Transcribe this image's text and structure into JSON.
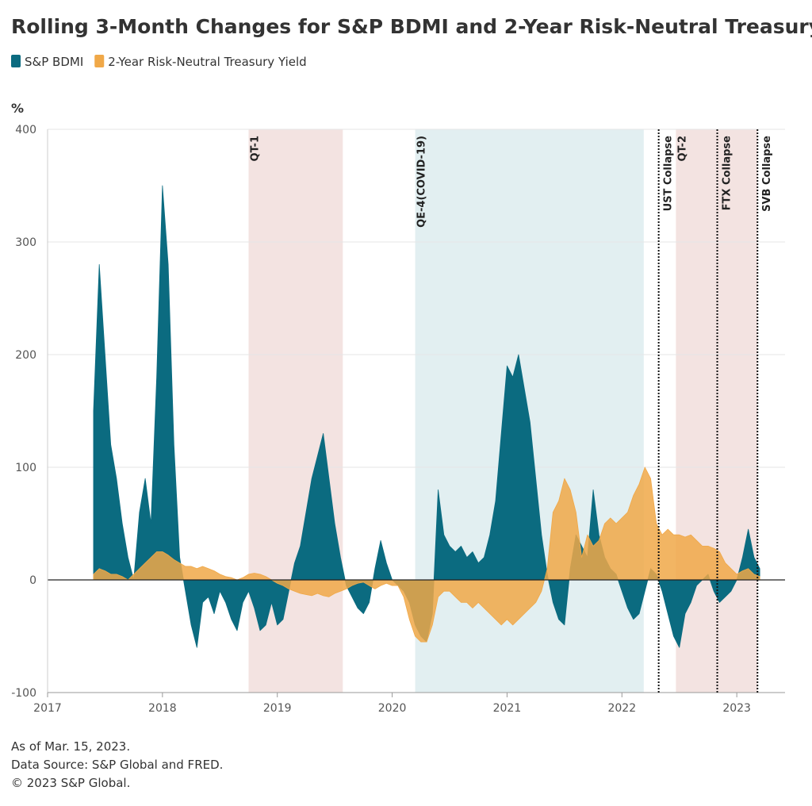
{
  "chart_data": {
    "type": "area",
    "title": "Rolling 3-Month Changes for S&P BDMI and 2-Year Risk-Neutral Treasury Yield",
    "y_label": "%",
    "notes": [
      "As of Mar. 15, 2023.",
      "Data Source: S&P Global and FRED.",
      "© 2023 S&P Global."
    ],
    "xlim": [
      2017,
      2023.42
    ],
    "xticks": [
      2017,
      2018,
      2019,
      2020,
      2021,
      2022,
      2023
    ],
    "ylim": [
      -100,
      400
    ],
    "yticks": [
      -100,
      0,
      100,
      200,
      300,
      400
    ],
    "grid": true,
    "legend": "top-left",
    "bands": [
      {
        "label": "QT-1",
        "start": 2018.75,
        "end": 2019.57,
        "color": "#f3e3e1"
      },
      {
        "label": "QE-4(COVID-19)",
        "start": 2020.2,
        "end": 2022.19,
        "color": "#e2eff1"
      },
      {
        "label": "QT-2",
        "start": 2022.47,
        "end": 2023.18,
        "color": "#f3e3e1"
      }
    ],
    "events": [
      {
        "label": "UST Collapse",
        "x": 2022.32
      },
      {
        "label": "FTX Collapse",
        "x": 2022.83
      },
      {
        "label": "SVB Collapse",
        "x": 2023.18
      }
    ],
    "x": [
      2017.4,
      2017.45,
      2017.5,
      2017.55,
      2017.6,
      2017.65,
      2017.7,
      2017.75,
      2017.8,
      2017.85,
      2017.9,
      2017.95,
      2018,
      2018.05,
      2018.1,
      2018.15,
      2018.2,
      2018.25,
      2018.3,
      2018.35,
      2018.4,
      2018.45,
      2018.5,
      2018.55,
      2018.6,
      2018.65,
      2018.7,
      2018.75,
      2018.8,
      2018.85,
      2018.9,
      2018.95,
      2019,
      2019.05,
      2019.1,
      2019.15,
      2019.2,
      2019.25,
      2019.3,
      2019.35,
      2019.4,
      2019.45,
      2019.5,
      2019.55,
      2019.6,
      2019.65,
      2019.7,
      2019.75,
      2019.8,
      2019.85,
      2019.9,
      2019.95,
      2020,
      2020.05,
      2020.1,
      2020.15,
      2020.2,
      2020.25,
      2020.3,
      2020.35,
      2020.4,
      2020.45,
      2020.5,
      2020.55,
      2020.6,
      2020.65,
      2020.7,
      2020.75,
      2020.8,
      2020.85,
      2020.9,
      2020.95,
      2021,
      2021.05,
      2021.1,
      2021.15,
      2021.2,
      2021.25,
      2021.3,
      2021.35,
      2021.4,
      2021.45,
      2021.5,
      2021.55,
      2021.6,
      2021.65,
      2021.7,
      2021.75,
      2021.8,
      2021.85,
      2021.9,
      2021.95,
      2022,
      2022.05,
      2022.1,
      2022.15,
      2022.2,
      2022.25,
      2022.3,
      2022.35,
      2022.4,
      2022.45,
      2022.5,
      2022.55,
      2022.6,
      2022.65,
      2022.7,
      2022.75,
      2022.8,
      2022.85,
      2022.9,
      2022.95,
      2023,
      2023.05,
      2023.1,
      2023.15,
      2023.2
    ],
    "series": [
      {
        "name": "S&P BDMI",
        "color": "#0b6b80",
        "values": [
          150,
          280,
          200,
          120,
          90,
          50,
          20,
          0,
          60,
          90,
          50,
          180,
          350,
          280,
          120,
          20,
          -10,
          -40,
          -60,
          -20,
          -15,
          -30,
          -10,
          -20,
          -35,
          -45,
          -20,
          -10,
          -25,
          -45,
          -40,
          -20,
          -40,
          -35,
          -10,
          15,
          30,
          60,
          90,
          110,
          130,
          90,
          50,
          20,
          -5,
          -15,
          -25,
          -30,
          -20,
          10,
          35,
          15,
          0,
          -5,
          -10,
          -20,
          -40,
          -50,
          -55,
          -30,
          80,
          40,
          30,
          25,
          30,
          20,
          25,
          15,
          20,
          40,
          70,
          130,
          190,
          180,
          200,
          170,
          140,
          90,
          40,
          5,
          -20,
          -35,
          -40,
          10,
          40,
          30,
          20,
          80,
          40,
          20,
          10,
          5,
          -10,
          -25,
          -35,
          -30,
          -10,
          10,
          5,
          -10,
          -30,
          -50,
          -60,
          -30,
          -20,
          -5,
          0,
          5,
          -10,
          -20,
          -15,
          -10,
          0,
          20,
          45,
          20,
          10
        ]
      },
      {
        "name": "2-Year Risk-Neutral Treasury Yield",
        "color": "#f0a848",
        "values": [
          5,
          10,
          8,
          5,
          5,
          3,
          0,
          5,
          10,
          15,
          20,
          25,
          25,
          22,
          18,
          15,
          12,
          12,
          10,
          12,
          10,
          8,
          5,
          3,
          2,
          0,
          2,
          5,
          6,
          5,
          3,
          0,
          -3,
          -5,
          -8,
          -10,
          -12,
          -13,
          -14,
          -12,
          -14,
          -15,
          -12,
          -10,
          -8,
          -5,
          -3,
          -2,
          -5,
          -8,
          -5,
          -3,
          -5,
          -5,
          -15,
          -35,
          -50,
          -55,
          -55,
          -40,
          -15,
          -10,
          -10,
          -15,
          -20,
          -20,
          -25,
          -20,
          -25,
          -30,
          -35,
          -40,
          -35,
          -40,
          -35,
          -30,
          -25,
          -20,
          -10,
          10,
          60,
          70,
          90,
          80,
          60,
          20,
          40,
          30,
          35,
          50,
          55,
          50,
          55,
          60,
          75,
          85,
          100,
          90,
          50,
          40,
          45,
          40,
          40,
          38,
          40,
          35,
          30,
          30,
          28,
          25,
          15,
          10,
          5,
          8,
          10,
          5,
          3
        ]
      }
    ]
  }
}
